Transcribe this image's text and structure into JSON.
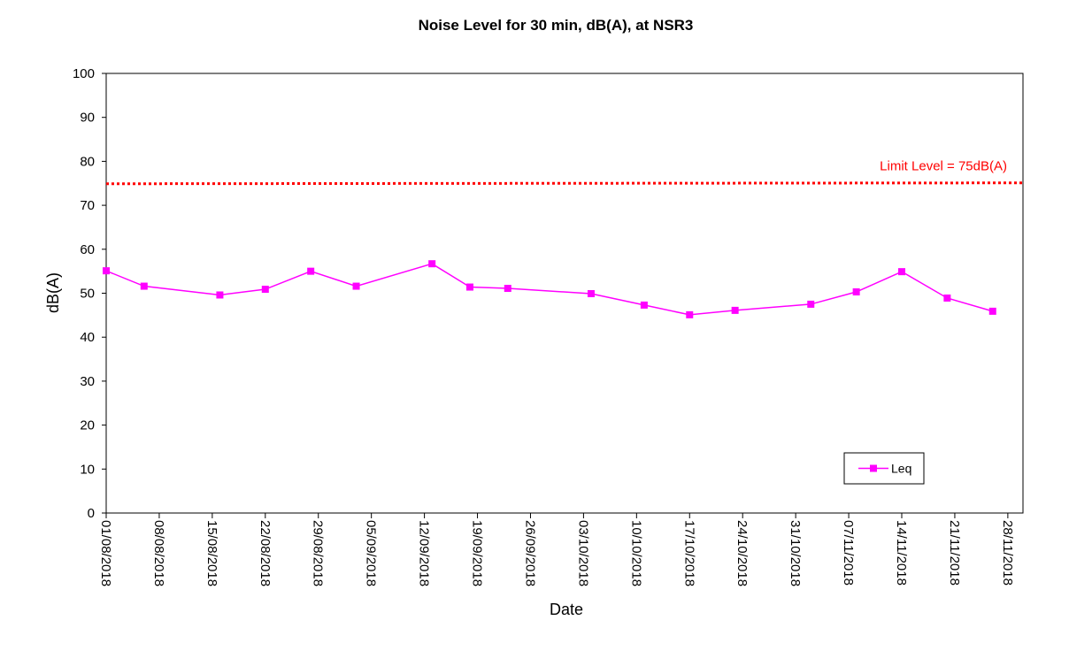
{
  "chart_data": {
    "type": "line",
    "title": "Noise Level for 30 min, dB(A), at NSR3",
    "xlabel": "Date",
    "ylabel": "dB(A)",
    "ylim": [
      0,
      100
    ],
    "yticks": [
      0,
      10,
      20,
      30,
      40,
      50,
      60,
      70,
      80,
      90,
      100
    ],
    "xlim": [
      "2018-08-01",
      "2018-11-30"
    ],
    "x_tick_labels": [
      "01/08/2018",
      "08/08/2018",
      "15/08/2018",
      "22/08/2018",
      "29/08/2018",
      "05/09/2018",
      "12/09/2018",
      "19/09/2018",
      "26/09/2018",
      "03/10/2018",
      "10/10/2018",
      "17/10/2018",
      "24/10/2018",
      "31/10/2018",
      "07/11/2018",
      "14/11/2018",
      "21/11/2018",
      "28/11/2018"
    ],
    "series": [
      {
        "name": "Leq",
        "color": "#ff00ff",
        "marker": "square",
        "x": [
          "2018-08-01",
          "2018-08-06",
          "2018-08-16",
          "2018-08-22",
          "2018-08-28",
          "2018-09-03",
          "2018-09-13",
          "2018-09-18",
          "2018-09-23",
          "2018-10-04",
          "2018-10-11",
          "2018-10-17",
          "2018-10-23",
          "2018-11-02",
          "2018-11-08",
          "2018-11-14",
          "2018-11-20",
          "2018-11-26"
        ],
        "values": [
          55.1,
          51.6,
          49.6,
          50.9,
          55.0,
          51.6,
          56.7,
          51.4,
          51.1,
          49.9,
          47.3,
          45.1,
          46.1,
          47.5,
          50.3,
          54.9,
          48.9,
          45.9
        ]
      }
    ],
    "limit_line": {
      "value": 75,
      "label": "Limit Level = 75dB(A)",
      "color": "#ff0000",
      "style": "dotted"
    },
    "legend": {
      "position": "bottom-right"
    },
    "grid": false
  }
}
